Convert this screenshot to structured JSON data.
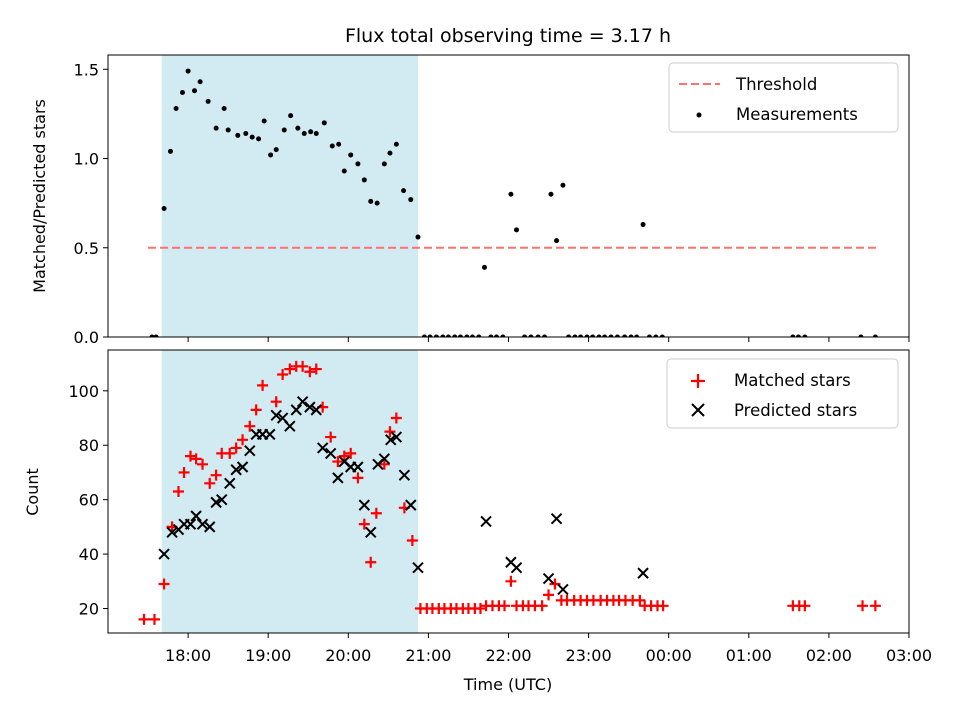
{
  "chart_data": {
    "type": "scatter",
    "title": "Flux total observing time = 3.17 h",
    "xlabel": "Time (UTC)",
    "x_ticks": [
      "18:00",
      "19:00",
      "20:00",
      "21:00",
      "22:00",
      "23:00",
      "00:00",
      "01:00",
      "02:00",
      "03:00"
    ],
    "x_range_hours": [
      17.0,
      27.0
    ],
    "shaded_interval_hours": [
      17.67,
      20.87
    ],
    "shade_color": "#add8e6",
    "panels": [
      {
        "ylabel": "Matched/Predicted stars",
        "ylim": [
          0,
          1.58
        ],
        "y_ticks": [
          0,
          0.5,
          1.0,
          1.5
        ],
        "y_tick_labels": [
          "0.0",
          "0.5",
          "1.0",
          "1.5"
        ],
        "threshold": {
          "name": "Threshold",
          "value": 0.5,
          "x_range_hours": [
            17.5,
            26.6
          ],
          "color": "#ff7070"
        },
        "series": [
          {
            "name": "Measurements",
            "color": "#000000",
            "marker": "dot",
            "points": [
              [
                17.55,
                0
              ],
              [
                17.6,
                0
              ],
              [
                17.7,
                0.72
              ],
              [
                17.78,
                1.04
              ],
              [
                17.85,
                1.28
              ],
              [
                17.93,
                1.37
              ],
              [
                18.0,
                1.49
              ],
              [
                18.08,
                1.38
              ],
              [
                18.15,
                1.43
              ],
              [
                18.25,
                1.32
              ],
              [
                18.35,
                1.17
              ],
              [
                18.45,
                1.28
              ],
              [
                18.5,
                1.16
              ],
              [
                18.62,
                1.13
              ],
              [
                18.72,
                1.14
              ],
              [
                18.8,
                1.12
              ],
              [
                18.88,
                1.11
              ],
              [
                18.95,
                1.21
              ],
              [
                19.03,
                1.02
              ],
              [
                19.1,
                1.05
              ],
              [
                19.2,
                1.16
              ],
              [
                19.28,
                1.24
              ],
              [
                19.37,
                1.17
              ],
              [
                19.45,
                1.14
              ],
              [
                19.53,
                1.15
              ],
              [
                19.6,
                1.14
              ],
              [
                19.7,
                1.2
              ],
              [
                19.8,
                1.07
              ],
              [
                19.88,
                1.08
              ],
              [
                19.95,
                0.93
              ],
              [
                20.03,
                1.02
              ],
              [
                20.12,
                0.97
              ],
              [
                20.2,
                0.88
              ],
              [
                20.28,
                0.76
              ],
              [
                20.36,
                0.75
              ],
              [
                20.45,
                0.97
              ],
              [
                20.52,
                1.03
              ],
              [
                20.6,
                1.08
              ],
              [
                20.69,
                0.82
              ],
              [
                20.78,
                0.77
              ],
              [
                20.87,
                0.56
              ],
              [
                20.95,
                0
              ],
              [
                21.02,
                0
              ],
              [
                21.1,
                0
              ],
              [
                21.18,
                0
              ],
              [
                21.25,
                0
              ],
              [
                21.33,
                0
              ],
              [
                21.4,
                0
              ],
              [
                21.48,
                0
              ],
              [
                21.55,
                0
              ],
              [
                21.63,
                0
              ],
              [
                21.7,
                0.39
              ],
              [
                21.78,
                0
              ],
              [
                21.85,
                0
              ],
              [
                21.93,
                0
              ],
              [
                22.03,
                0.8
              ],
              [
                22.1,
                0.6
              ],
              [
                22.2,
                0
              ],
              [
                22.28,
                0
              ],
              [
                22.37,
                0
              ],
              [
                22.45,
                0
              ],
              [
                22.53,
                0.8
              ],
              [
                22.6,
                0.54
              ],
              [
                22.68,
                0.85
              ],
              [
                22.75,
                0
              ],
              [
                22.83,
                0
              ],
              [
                22.9,
                0
              ],
              [
                22.98,
                0
              ],
              [
                23.05,
                0
              ],
              [
                23.13,
                0
              ],
              [
                23.2,
                0
              ],
              [
                23.28,
                0
              ],
              [
                23.36,
                0
              ],
              [
                23.45,
                0
              ],
              [
                23.53,
                0
              ],
              [
                23.6,
                0
              ],
              [
                23.68,
                0.63
              ],
              [
                23.76,
                0
              ],
              [
                23.84,
                0
              ],
              [
                23.92,
                0
              ],
              [
                25.55,
                0
              ],
              [
                25.62,
                0
              ],
              [
                25.7,
                0
              ],
              [
                26.4,
                0
              ],
              [
                26.58,
                0
              ]
            ]
          }
        ],
        "legend": {
          "position": "top-right"
        }
      },
      {
        "ylabel": "Count",
        "ylim": [
          11,
          115
        ],
        "y_ticks": [
          20,
          40,
          60,
          80,
          100
        ],
        "y_tick_labels": [
          "20",
          "40",
          "60",
          "80",
          "100"
        ],
        "series": [
          {
            "name": "Matched stars",
            "color": "#ff0000",
            "marker": "plus",
            "points": [
              [
                17.45,
                16
              ],
              [
                17.58,
                16
              ],
              [
                17.7,
                29
              ],
              [
                17.8,
                50
              ],
              [
                17.88,
                63
              ],
              [
                17.95,
                70
              ],
              [
                18.03,
                76
              ],
              [
                18.1,
                75
              ],
              [
                18.18,
                73
              ],
              [
                18.27,
                66
              ],
              [
                18.35,
                69
              ],
              [
                18.42,
                77
              ],
              [
                18.52,
                77
              ],
              [
                18.6,
                79
              ],
              [
                18.68,
                82
              ],
              [
                18.77,
                87
              ],
              [
                18.85,
                93
              ],
              [
                18.93,
                102
              ],
              [
                19.1,
                96
              ],
              [
                19.18,
                106
              ],
              [
                19.27,
                108
              ],
              [
                19.35,
                109
              ],
              [
                19.43,
                109
              ],
              [
                19.52,
                107
              ],
              [
                19.6,
                108
              ],
              [
                19.68,
                94
              ],
              [
                19.78,
                83
              ],
              [
                19.87,
                74
              ],
              [
                19.95,
                76
              ],
              [
                20.03,
                77
              ],
              [
                20.12,
                68
              ],
              [
                20.2,
                51
              ],
              [
                20.28,
                37
              ],
              [
                20.35,
                55
              ],
              [
                20.45,
                73
              ],
              [
                20.52,
                85
              ],
              [
                20.6,
                90
              ],
              [
                20.7,
                57
              ],
              [
                20.8,
                45
              ],
              [
                20.9,
                20
              ],
              [
                20.98,
                20
              ],
              [
                21.05,
                20
              ],
              [
                21.13,
                20
              ],
              [
                21.2,
                20
              ],
              [
                21.28,
                20
              ],
              [
                21.35,
                20
              ],
              [
                21.43,
                20
              ],
              [
                21.5,
                20
              ],
              [
                21.58,
                20
              ],
              [
                21.65,
                20
              ],
              [
                21.72,
                21
              ],
              [
                21.8,
                21
              ],
              [
                21.88,
                21
              ],
              [
                21.95,
                21
              ],
              [
                22.03,
                30
              ],
              [
                22.1,
                21
              ],
              [
                22.18,
                21
              ],
              [
                22.25,
                21
              ],
              [
                22.33,
                21
              ],
              [
                22.42,
                21
              ],
              [
                22.5,
                25
              ],
              [
                22.58,
                29
              ],
              [
                22.66,
                23
              ],
              [
                22.73,
                23
              ],
              [
                22.82,
                23
              ],
              [
                22.9,
                23
              ],
              [
                22.98,
                23
              ],
              [
                23.06,
                23
              ],
              [
                23.15,
                23
              ],
              [
                23.23,
                23
              ],
              [
                23.31,
                23
              ],
              [
                23.38,
                23
              ],
              [
                23.46,
                23
              ],
              [
                23.55,
                23
              ],
              [
                23.64,
                23
              ],
              [
                23.7,
                21
              ],
              [
                23.78,
                21
              ],
              [
                23.86,
                21
              ],
              [
                23.93,
                21
              ],
              [
                25.55,
                21
              ],
              [
                25.63,
                21
              ],
              [
                25.7,
                21
              ],
              [
                26.42,
                21
              ],
              [
                26.58,
                21
              ]
            ]
          },
          {
            "name": "Predicted stars",
            "color": "#000000",
            "marker": "x",
            "points": [
              [
                17.7,
                40
              ],
              [
                17.8,
                48
              ],
              [
                17.88,
                49
              ],
              [
                17.95,
                51
              ],
              [
                18.03,
                51
              ],
              [
                18.1,
                54
              ],
              [
                18.18,
                51
              ],
              [
                18.27,
                50
              ],
              [
                18.35,
                59
              ],
              [
                18.42,
                60
              ],
              [
                18.52,
                66
              ],
              [
                18.6,
                71
              ],
              [
                18.68,
                72
              ],
              [
                18.77,
                78
              ],
              [
                18.85,
                84
              ],
              [
                18.93,
                84
              ],
              [
                19.02,
                84
              ],
              [
                19.1,
                91
              ],
              [
                19.18,
                90
              ],
              [
                19.27,
                87
              ],
              [
                19.35,
                93
              ],
              [
                19.43,
                96
              ],
              [
                19.52,
                94
              ],
              [
                19.6,
                93
              ],
              [
                19.68,
                79
              ],
              [
                19.78,
                77
              ],
              [
                19.87,
                68
              ],
              [
                19.95,
                74
              ],
              [
                20.03,
                72
              ],
              [
                20.12,
                72
              ],
              [
                20.2,
                58
              ],
              [
                20.28,
                48
              ],
              [
                20.37,
                73
              ],
              [
                20.45,
                75
              ],
              [
                20.53,
                82
              ],
              [
                20.6,
                83
              ],
              [
                20.7,
                69
              ],
              [
                20.78,
                58
              ],
              [
                20.87,
                35
              ],
              [
                21.72,
                52
              ],
              [
                22.03,
                37
              ],
              [
                22.1,
                35
              ],
              [
                22.5,
                31
              ],
              [
                22.6,
                53
              ],
              [
                22.68,
                27
              ],
              [
                23.68,
                33
              ]
            ]
          }
        ],
        "legend": {
          "position": "top-right"
        }
      }
    ]
  }
}
